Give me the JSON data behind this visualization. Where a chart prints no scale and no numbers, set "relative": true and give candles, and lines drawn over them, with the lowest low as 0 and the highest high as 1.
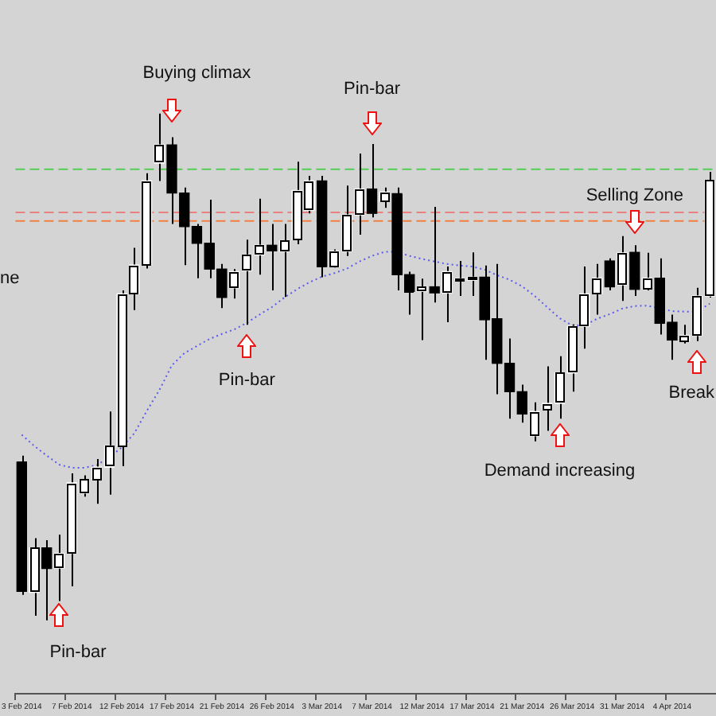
{
  "chart_data": {
    "type": "candlestick",
    "relative": true,
    "tick_labels": "x",
    "grid": false,
    "legend": false,
    "categories": [
      "3 Feb 2014",
      null,
      null,
      null,
      "7 Feb 2014",
      null,
      null,
      null,
      "12 Feb 2014",
      null,
      null,
      null,
      "17 Feb 2014",
      null,
      null,
      null,
      "21 Feb 2014",
      null,
      null,
      null,
      "26 Feb 2014",
      null,
      null,
      null,
      "3 Mar 2014",
      null,
      null,
      null,
      "7 Mar 2014",
      null,
      null,
      null,
      "12 Mar 2014",
      null,
      null,
      null,
      "17 Mar 2014",
      null,
      null,
      null,
      "21 Mar 2014",
      null,
      null,
      null,
      "26 Mar 2014",
      null,
      null,
      null,
      "31 Mar 2014",
      null,
      null,
      null,
      "4 Apr 2014",
      null,
      null,
      null
    ],
    "ohlc": [
      [
        0.312,
        0.325,
        0.05,
        0.057
      ],
      [
        0.055,
        0.162,
        0.009,
        0.143
      ],
      [
        0.143,
        0.158,
        0,
        0.102
      ],
      [
        0.103,
        0.169,
        0.038,
        0.132
      ],
      [
        0.132,
        0.29,
        0.067,
        0.271
      ],
      [
        0.251,
        0.286,
        0.244,
        0.278
      ],
      [
        0.278,
        0.318,
        0.23,
        0.302
      ],
      [
        0.302,
        0.412,
        0.248,
        0.344
      ],
      [
        0.344,
        0.651,
        0.304,
        0.644
      ],
      [
        0.644,
        0.735,
        0.612,
        0.701
      ],
      [
        0.701,
        0.882,
        0.694,
        0.867
      ],
      [
        0.902,
        1,
        0.867,
        0.938
      ],
      [
        0.938,
        0.953,
        0.782,
        0.843
      ],
      [
        0.843,
        0.854,
        0.701,
        0.777
      ],
      [
        0.777,
        0.782,
        0.675,
        0.744
      ],
      [
        0.744,
        0.83,
        0.675,
        0.693
      ],
      [
        0.693,
        0.703,
        0.616,
        0.637
      ],
      [
        0.656,
        0.693,
        0.635,
        0.688
      ],
      [
        0.69,
        0.751,
        0.583,
        0.721
      ],
      [
        0.721,
        0.832,
        0.682,
        0.74
      ],
      [
        0.74,
        0.782,
        0.651,
        0.729
      ],
      [
        0.728,
        0.782,
        0.638,
        0.749
      ],
      [
        0.751,
        0.905,
        0.742,
        0.848
      ],
      [
        0.809,
        0.877,
        0.803,
        0.867
      ],
      [
        0.867,
        0.877,
        0.677,
        0.698
      ],
      [
        0.698,
        0.732,
        0.696,
        0.728
      ],
      [
        0.728,
        0.858,
        0.719,
        0.8
      ],
      [
        0.8,
        0.921,
        0.761,
        0.851
      ],
      [
        0.851,
        0.94,
        0.795,
        0.803
      ],
      [
        0.827,
        0.854,
        0.814,
        0.845
      ],
      [
        0.842,
        0.854,
        0.651,
        0.682
      ],
      [
        0.682,
        0.688,
        0.603,
        0.649
      ],
      [
        0.649,
        0.674,
        0.553,
        0.658
      ],
      [
        0.658,
        0.816,
        0.627,
        0.646
      ],
      [
        0.646,
        0.698,
        0.588,
        0.688
      ],
      [
        0.672,
        0.709,
        0.64,
        0.674
      ],
      [
        0.671,
        0.726,
        0.64,
        0.677
      ],
      [
        0.677,
        0.7,
        0.514,
        0.593
      ],
      [
        0.595,
        0.703,
        0.446,
        0.507
      ],
      [
        0.507,
        0.556,
        0.398,
        0.451
      ],
      [
        0.451,
        0.465,
        0.39,
        0.407
      ],
      [
        0.364,
        0.43,
        0.353,
        0.412
      ],
      [
        0.416,
        0.501,
        0.374,
        0.428
      ],
      [
        0.428,
        0.521,
        0.398,
        0.488
      ],
      [
        0.488,
        0.584,
        0.451,
        0.58
      ],
      [
        0.58,
        0.698,
        0.536,
        0.644
      ],
      [
        0.644,
        0.703,
        0.603,
        0.675
      ],
      [
        0.709,
        0.714,
        0.651,
        0.658
      ],
      [
        0.662,
        0.758,
        0.63,
        0.725
      ],
      [
        0.726,
        0.74,
        0.64,
        0.653
      ],
      [
        0.654,
        0.725,
        0.651,
        0.675
      ],
      [
        0.675,
        0.714,
        0.564,
        0.586
      ],
      [
        0.588,
        0.603,
        0.514,
        0.553
      ],
      [
        0.551,
        0.583,
        0.546,
        0.562
      ],
      [
        0.562,
        0.656,
        0.551,
        0.64
      ],
      [
        0.64,
        0.885,
        0.637,
        0.868
      ]
    ],
    "series": [
      {
        "type": "line",
        "color": "#5a5af0",
        "line_style": "dotted",
        "marker": "none",
        "values": [
          0.366,
          0.344,
          0.325,
          0.307,
          0.301,
          0.301,
          0.306,
          0.322,
          0.341,
          0.369,
          0.413,
          0.454,
          0.503,
          0.527,
          0.541,
          0.555,
          0.565,
          0.574,
          0.587,
          0.603,
          0.618,
          0.637,
          0.653,
          0.667,
          0.678,
          0.685,
          0.694,
          0.708,
          0.719,
          0.727,
          0.727,
          0.719,
          0.713,
          0.708,
          0.703,
          0.7,
          0.698,
          0.692,
          0.681,
          0.672,
          0.659,
          0.64,
          0.618,
          0.596,
          0.582,
          0.582,
          0.595,
          0.604,
          0.615,
          0.62,
          0.621,
          null,
          0.61,
          0.609,
          0.609,
          0.625
        ]
      }
    ],
    "ref_lines": [
      {
        "axis": "y",
        "value": 0.89,
        "color": "#55cc55",
        "line_style": "dashed"
      },
      {
        "axis": "y",
        "value": 0.805,
        "color": "#e88080",
        "line_style": "dashed"
      },
      {
        "axis": "y",
        "value": 0.788,
        "color": "#ee8044",
        "line_style": "dashed"
      }
    ],
    "annotations": [
      "Buying climax",
      "Pin-bar",
      "Selling Zone",
      "ne",
      "Pin-bar",
      "Demand increasing",
      "Break",
      "Pin-bar"
    ]
  }
}
